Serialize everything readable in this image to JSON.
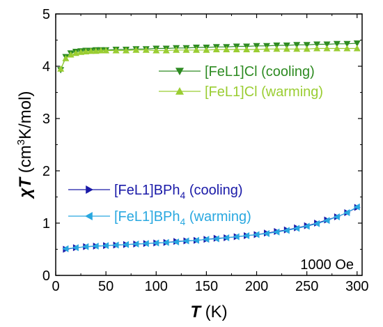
{
  "chart_data": {
    "type": "scatter",
    "title": "",
    "xlabel": {
      "symbol": "T",
      "unit": "(K)"
    },
    "ylabel": {
      "symbol": "χT",
      "unit_pre": "(cm",
      "unit_sup": "3",
      "unit_post": "K/mol)"
    },
    "xlim": [
      0,
      305
    ],
    "ylim": [
      0,
      5
    ],
    "x_ticks": [
      "0",
      "50",
      "100",
      "150",
      "200",
      "250",
      "300"
    ],
    "y_ticks": [
      "0",
      "1",
      "2",
      "3",
      "4",
      "5"
    ],
    "grid": false,
    "annotation": "1000 Oe",
    "series": [
      {
        "name_pre": "[FeL1]Cl (cooling)",
        "name_sub": "",
        "name_post": "",
        "color": "#2e8b22",
        "marker": "triangle-down",
        "x": [
          5,
          10,
          15,
          20,
          25,
          30,
          35,
          40,
          45,
          50,
          60,
          70,
          80,
          90,
          100,
          110,
          120,
          130,
          140,
          150,
          160,
          170,
          180,
          190,
          200,
          210,
          220,
          230,
          240,
          250,
          260,
          270,
          280,
          290,
          300
        ],
        "y": [
          3.93,
          4.18,
          4.25,
          4.28,
          4.29,
          4.3,
          4.3,
          4.31,
          4.31,
          4.31,
          4.32,
          4.32,
          4.33,
          4.33,
          4.34,
          4.34,
          4.35,
          4.35,
          4.36,
          4.36,
          4.37,
          4.37,
          4.38,
          4.38,
          4.39,
          4.39,
          4.4,
          4.4,
          4.41,
          4.41,
          4.42,
          4.42,
          4.43,
          4.43,
          4.44
        ]
      },
      {
        "name_pre": "[FeL1]Cl (warming)",
        "name_sub": "",
        "name_post": "",
        "color": "#9acd32",
        "marker": "triangle-up",
        "x": [
          5,
          10,
          15,
          20,
          25,
          30,
          35,
          40,
          45,
          50,
          60,
          70,
          80,
          90,
          100,
          110,
          120,
          130,
          140,
          150,
          160,
          170,
          180,
          190,
          200,
          210,
          220,
          230,
          240,
          250,
          260,
          270,
          280,
          290,
          300
        ],
        "y": [
          3.95,
          4.15,
          4.22,
          4.25,
          4.27,
          4.28,
          4.29,
          4.29,
          4.3,
          4.3,
          4.3,
          4.3,
          4.31,
          4.31,
          4.3,
          4.3,
          4.31,
          4.31,
          4.31,
          4.31,
          4.32,
          4.32,
          4.32,
          4.32,
          4.32,
          4.33,
          4.33,
          4.33,
          4.33,
          4.33,
          4.34,
          4.34,
          4.34,
          4.34,
          4.34
        ]
      },
      {
        "name_pre": "[FeL1]BPh",
        "name_sub": "4",
        "name_post": " (cooling)",
        "color": "#1a1aa8",
        "marker": "triangle-right",
        "x": [
          10,
          20,
          30,
          40,
          50,
          60,
          70,
          80,
          90,
          100,
          110,
          120,
          130,
          140,
          150,
          160,
          170,
          180,
          190,
          200,
          210,
          220,
          230,
          240,
          250,
          260,
          270,
          280,
          290,
          300
        ],
        "y": [
          0.5,
          0.53,
          0.55,
          0.56,
          0.57,
          0.58,
          0.59,
          0.6,
          0.61,
          0.62,
          0.63,
          0.65,
          0.66,
          0.67,
          0.69,
          0.71,
          0.72,
          0.74,
          0.76,
          0.78,
          0.81,
          0.84,
          0.87,
          0.91,
          0.95,
          1.0,
          1.06,
          1.12,
          1.2,
          1.3
        ]
      },
      {
        "name_pre": "[FeL1]BPh",
        "name_sub": "4",
        "name_post": " (warming)",
        "color": "#29a8e0",
        "marker": "triangle-left",
        "x": [
          10,
          20,
          30,
          40,
          50,
          60,
          70,
          80,
          90,
          100,
          110,
          120,
          130,
          140,
          150,
          160,
          170,
          180,
          190,
          200,
          210,
          220,
          230,
          240,
          250,
          260,
          270,
          280,
          290,
          300
        ],
        "y": [
          0.51,
          0.53,
          0.55,
          0.56,
          0.57,
          0.58,
          0.59,
          0.6,
          0.61,
          0.62,
          0.63,
          0.64,
          0.66,
          0.67,
          0.69,
          0.7,
          0.72,
          0.74,
          0.76,
          0.78,
          0.8,
          0.83,
          0.86,
          0.9,
          0.94,
          0.99,
          1.05,
          1.12,
          1.2,
          1.31
        ]
      }
    ]
  }
}
